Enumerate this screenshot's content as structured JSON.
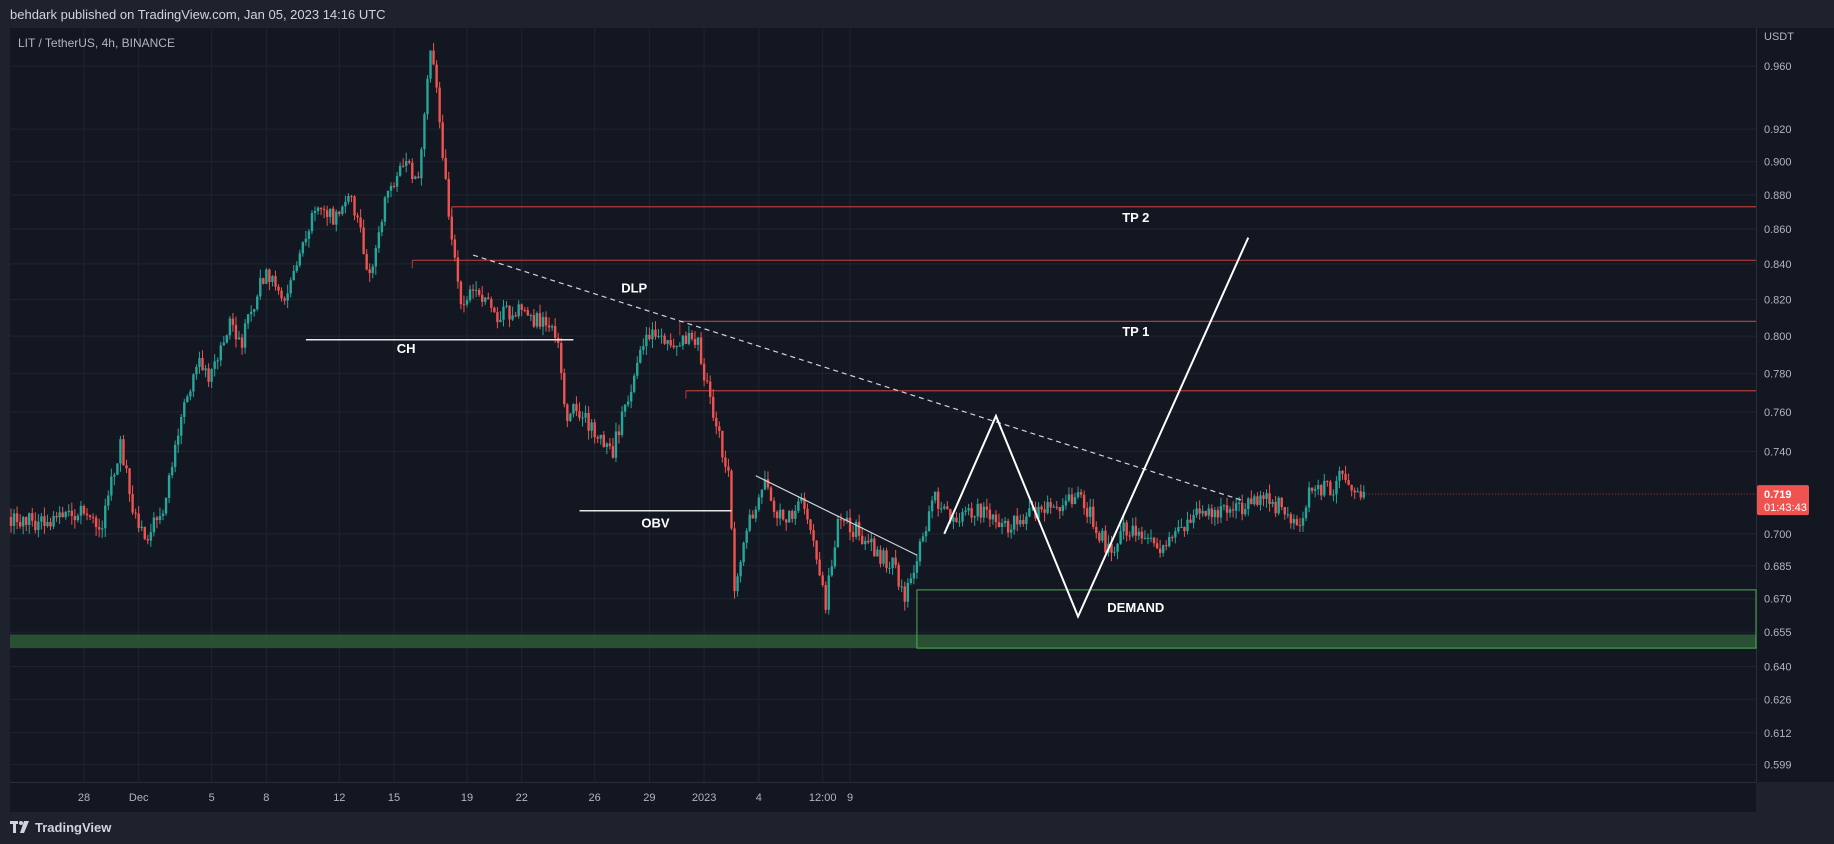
{
  "header": {
    "published": "behdark published on TradingView.com, Jan 05, 2023 14:16 UTC"
  },
  "symbol": "LIT / TetherUS, 4h, BINANCE",
  "footer": {
    "logo": "TradingView"
  },
  "colors": {
    "up": "#26a69a",
    "down": "#ef5350",
    "zone": "#2f5a37",
    "level": "#b23a3a",
    "background": "#131722"
  },
  "chart_data": {
    "type": "candlestick",
    "price_unit": "USDT",
    "last_price": "0.719",
    "countdown": "01:43:43",
    "y_ticks": [
      "0.960",
      "0.920",
      "0.900",
      "0.880",
      "0.860",
      "0.840",
      "0.820",
      "0.800",
      "0.780",
      "0.760",
      "0.740",
      "0.719",
      "0.700",
      "0.685",
      "0.670",
      "0.655",
      "0.640",
      "0.626",
      "0.612",
      "0.599"
    ],
    "x_ticks": [
      "28",
      "Dec",
      "5",
      "8",
      "12",
      "15",
      "19",
      "22",
      "26",
      "29",
      "2023",
      "4",
      "12:00",
      "9"
    ],
    "ylim": [
      0.592,
      0.985
    ],
    "candles_per_day": 6,
    "first_candle_date": "2022-11-24",
    "close_path": [
      {
        "t": 0,
        "p": 0.708
      },
      {
        "t": 12,
        "p": 0.705
      },
      {
        "t": 20,
        "p": 0.71
      },
      {
        "t": 24,
        "p": 0.712
      },
      {
        "t": 30,
        "p": 0.705
      },
      {
        "t": 36,
        "p": 0.745
      },
      {
        "t": 40,
        "p": 0.712
      },
      {
        "t": 44,
        "p": 0.696
      },
      {
        "t": 50,
        "p": 0.712
      },
      {
        "t": 56,
        "p": 0.76
      },
      {
        "t": 62,
        "p": 0.785
      },
      {
        "t": 66,
        "p": 0.778
      },
      {
        "t": 72,
        "p": 0.806
      },
      {
        "t": 76,
        "p": 0.797
      },
      {
        "t": 84,
        "p": 0.838
      },
      {
        "t": 90,
        "p": 0.818
      },
      {
        "t": 100,
        "p": 0.872
      },
      {
        "t": 106,
        "p": 0.866
      },
      {
        "t": 112,
        "p": 0.88
      },
      {
        "t": 118,
        "p": 0.832
      },
      {
        "t": 124,
        "p": 0.884
      },
      {
        "t": 130,
        "p": 0.903
      },
      {
        "t": 134,
        "p": 0.885
      },
      {
        "t": 138,
        "p": 0.975
      },
      {
        "t": 140,
        "p": 0.945
      },
      {
        "t": 144,
        "p": 0.87
      },
      {
        "t": 148,
        "p": 0.82
      },
      {
        "t": 154,
        "p": 0.825
      },
      {
        "t": 160,
        "p": 0.81
      },
      {
        "t": 168,
        "p": 0.815
      },
      {
        "t": 180,
        "p": 0.8
      },
      {
        "t": 182,
        "p": 0.76
      },
      {
        "t": 186,
        "p": 0.76
      },
      {
        "t": 192,
        "p": 0.75
      },
      {
        "t": 198,
        "p": 0.74
      },
      {
        "t": 204,
        "p": 0.775
      },
      {
        "t": 210,
        "p": 0.802
      },
      {
        "t": 216,
        "p": 0.798
      },
      {
        "t": 222,
        "p": 0.8
      },
      {
        "t": 226,
        "p": 0.795
      },
      {
        "t": 232,
        "p": 0.752
      },
      {
        "t": 236,
        "p": 0.73
      },
      {
        "t": 238,
        "p": 0.675
      },
      {
        "t": 242,
        "p": 0.705
      },
      {
        "t": 248,
        "p": 0.722
      },
      {
        "t": 254,
        "p": 0.705
      },
      {
        "t": 260,
        "p": 0.715
      },
      {
        "t": 264,
        "p": 0.7
      },
      {
        "t": 268,
        "p": 0.668
      },
      {
        "t": 272,
        "p": 0.706
      },
      {
        "t": 278,
        "p": 0.702
      },
      {
        "t": 284,
        "p": 0.692
      },
      {
        "t": 290,
        "p": 0.686
      },
      {
        "t": 294,
        "p": 0.672
      },
      {
        "t": 298,
        "p": 0.69
      },
      {
        "t": 304,
        "p": 0.718
      },
      {
        "t": 310,
        "p": 0.705
      },
      {
        "t": 316,
        "p": 0.712
      },
      {
        "t": 322,
        "p": 0.708
      },
      {
        "t": 328,
        "p": 0.704
      },
      {
        "t": 336,
        "p": 0.71
      },
      {
        "t": 346,
        "p": 0.715
      },
      {
        "t": 352,
        "p": 0.718
      },
      {
        "t": 358,
        "p": 0.7
      },
      {
        "t": 362,
        "p": 0.69
      },
      {
        "t": 366,
        "p": 0.703
      },
      {
        "t": 372,
        "p": 0.702
      },
      {
        "t": 378,
        "p": 0.692
      },
      {
        "t": 384,
        "p": 0.7
      },
      {
        "t": 390,
        "p": 0.708
      },
      {
        "t": 396,
        "p": 0.71
      },
      {
        "t": 402,
        "p": 0.71
      },
      {
        "t": 408,
        "p": 0.716
      },
      {
        "t": 414,
        "p": 0.716
      },
      {
        "t": 420,
        "p": 0.71
      },
      {
        "t": 424,
        "p": 0.702
      },
      {
        "t": 428,
        "p": 0.725
      },
      {
        "t": 434,
        "p": 0.72
      },
      {
        "t": 438,
        "p": 0.729
      },
      {
        "t": 442,
        "p": 0.72
      },
      {
        "t": 445,
        "p": 0.717
      }
    ],
    "zones": [
      {
        "label": "",
        "from": 0.648,
        "to": 0.654,
        "color": "#2f5a37"
      }
    ],
    "levels": [
      {
        "price": 0.873,
        "start_t": 145
      },
      {
        "price": 0.842,
        "start_t": 132
      },
      {
        "price": 0.808,
        "start_t": 220
      },
      {
        "price": 0.771,
        "start_t": 222
      }
    ],
    "demand": {
      "top": 0.674,
      "bottom": 0.648,
      "start_t": 298
    },
    "trendlines": [
      {
        "kind": "dashed",
        "t1": 152,
        "p1": 0.845,
        "t2": 405,
        "p2": 0.716
      },
      {
        "kind": "solid",
        "t1": 245,
        "p1": 0.728,
        "t2": 298,
        "p2": 0.69
      }
    ],
    "hlines": [
      {
        "t1": 97,
        "t2": 185,
        "p": 0.798
      },
      {
        "t1": 187,
        "t2": 237,
        "p": 0.711
      }
    ],
    "projection": [
      {
        "t": 307,
        "p": 0.7
      },
      {
        "t": 324,
        "p": 0.758
      },
      {
        "t": 351,
        "p": 0.662
      },
      {
        "t": 407,
        "p": 0.855
      }
    ],
    "annotations": [
      {
        "text": "TP 2",
        "t": 370,
        "p": 0.864
      },
      {
        "text": "DLP",
        "t": 205,
        "p": 0.824
      },
      {
        "text": "TP 1",
        "t": 370,
        "p": 0.8
      },
      {
        "text": "CH",
        "t": 130,
        "p": 0.791
      },
      {
        "text": "OBV",
        "t": 212,
        "p": 0.703
      },
      {
        "text": "DEMAND",
        "t": 370,
        "p": 0.664
      }
    ]
  }
}
